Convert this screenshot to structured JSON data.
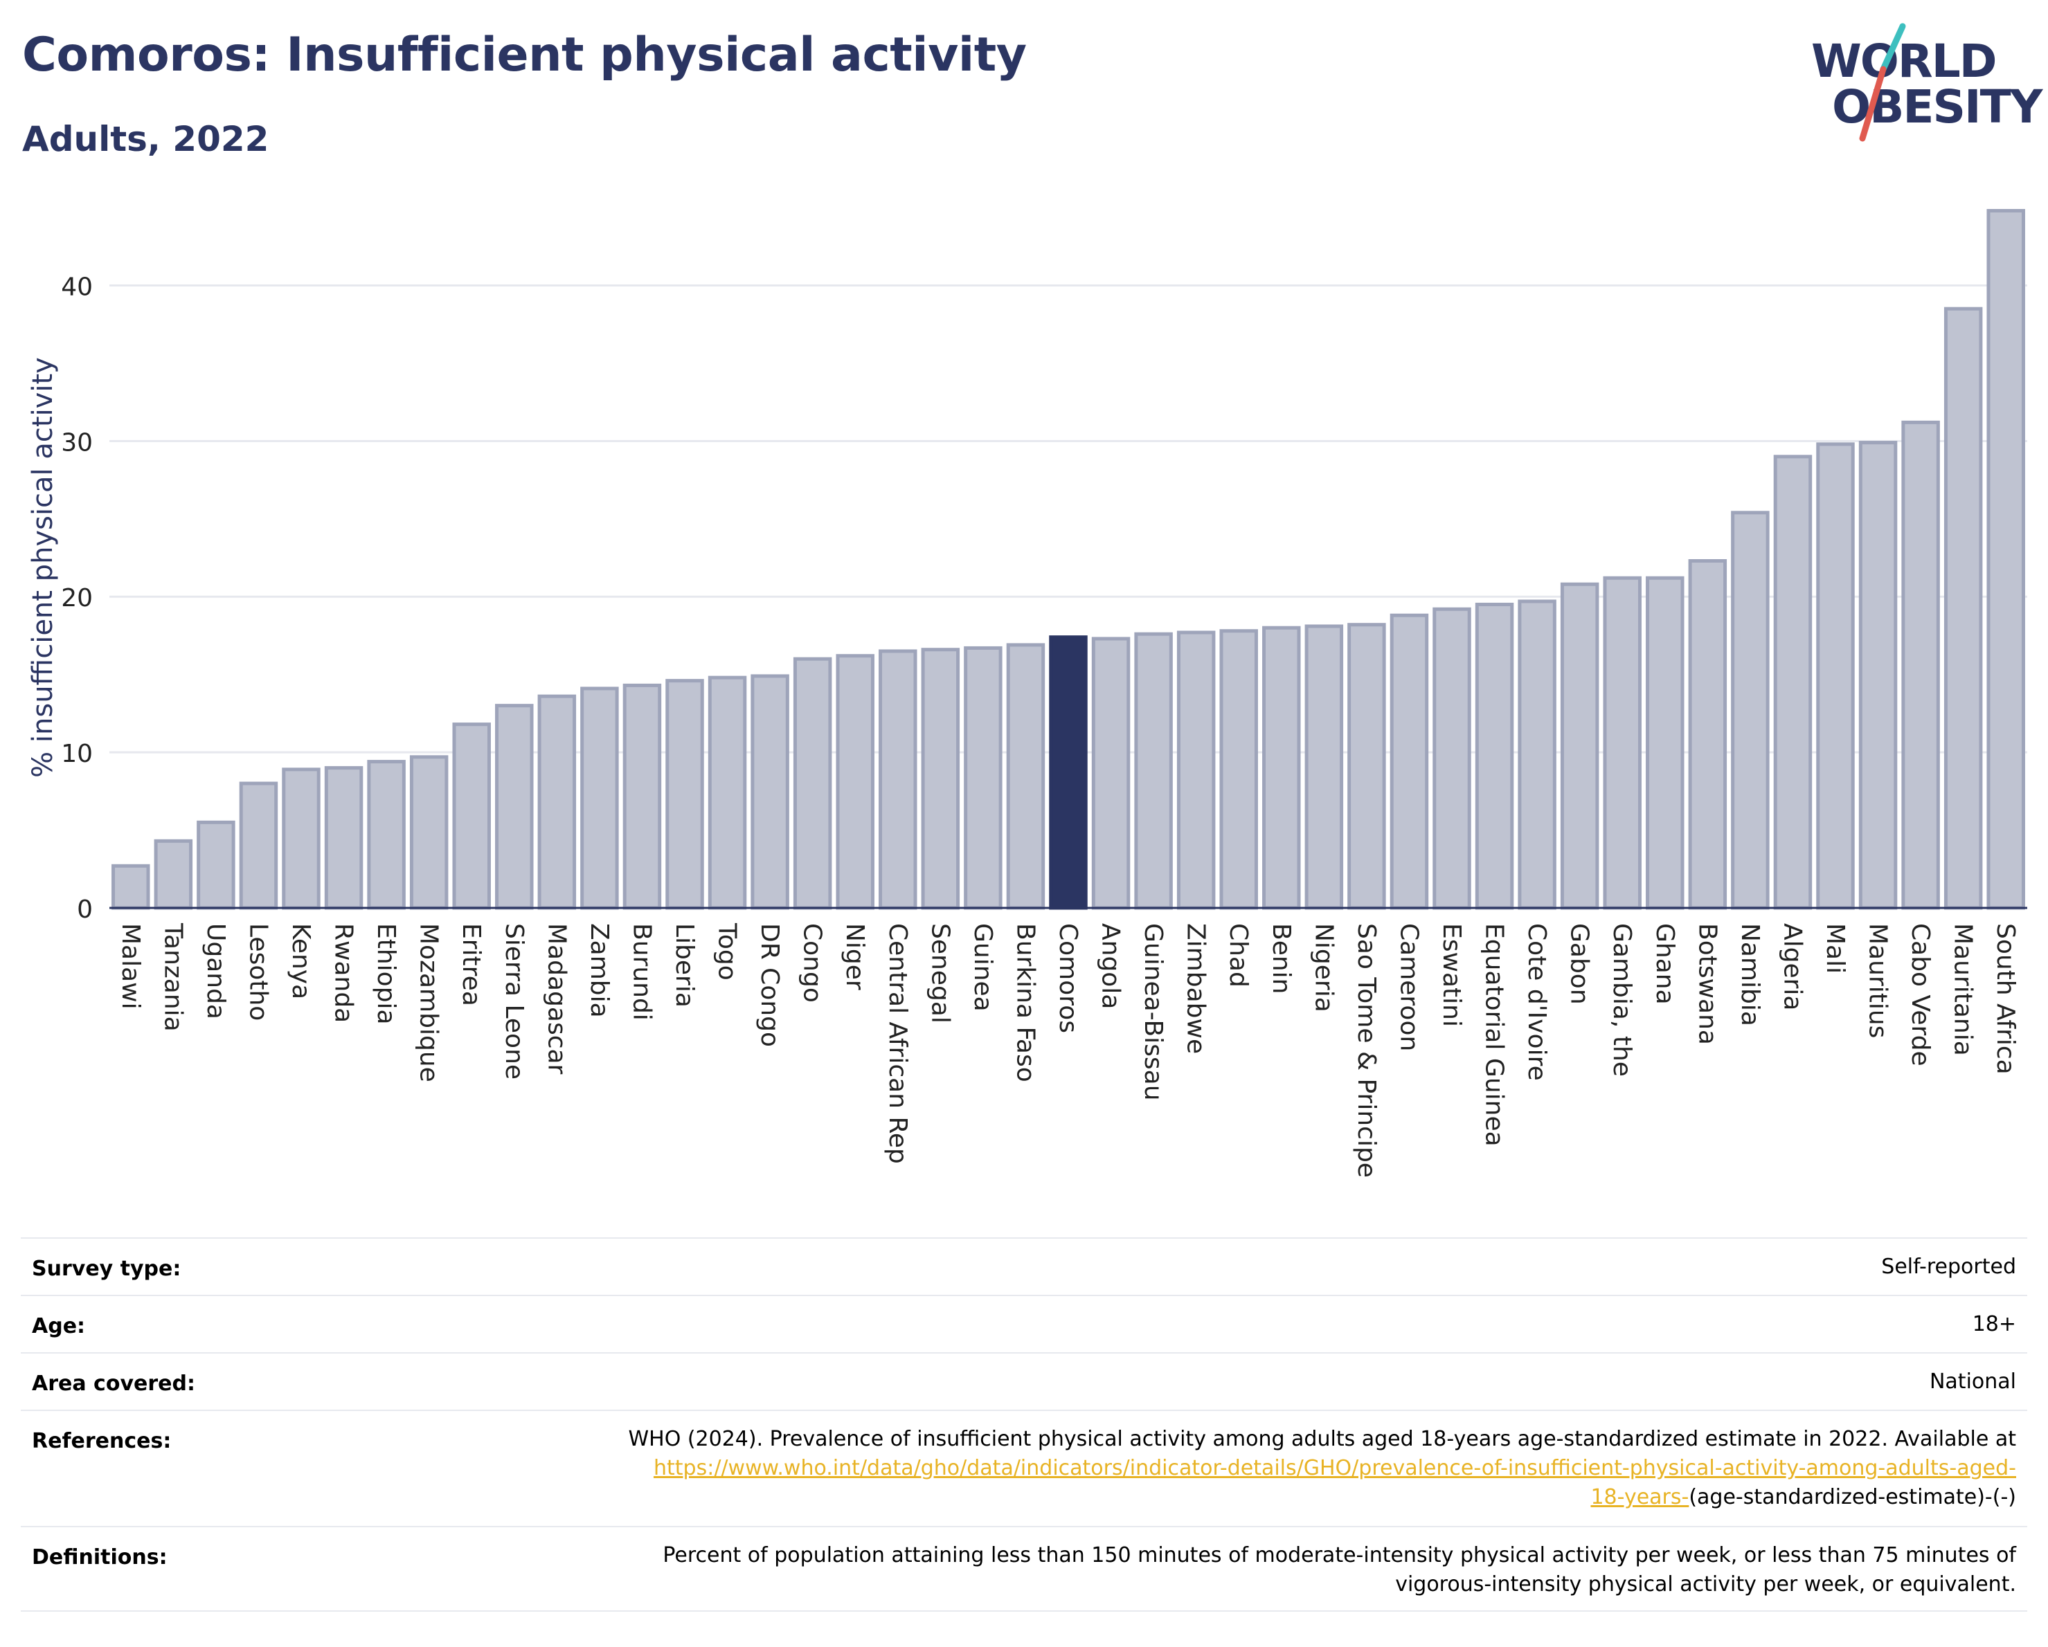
{
  "title": "Comoros: Insufficient physical activity",
  "subtitle": "Adults, 2022",
  "logo": {
    "line1": "WORLD",
    "line2": "OBESITY"
  },
  "colors": {
    "bar": "#bfc3d1",
    "bar_edge": "#9ea4ba",
    "highlight": "#2b3562",
    "text": "#2b3562",
    "grid": "#e6e8ee",
    "link": "#e8b325"
  },
  "chart_data": {
    "type": "bar",
    "ylabel": "% insufficient physical activity",
    "ylim": [
      0,
      45
    ],
    "yticks": [
      0,
      10,
      20,
      30,
      40
    ],
    "grid": true,
    "highlight": "Comoros",
    "categories": [
      "Malawi",
      "Tanzania",
      "Uganda",
      "Lesotho",
      "Kenya",
      "Rwanda",
      "Ethiopia",
      "Mozambique",
      "Eritrea",
      "Sierra Leone",
      "Madagascar",
      "Zambia",
      "Burundi",
      "Liberia",
      "Togo",
      "DR Congo",
      "Congo",
      "Niger",
      "Central African Rep",
      "Senegal",
      "Guinea",
      "Burkina Faso",
      "Comoros",
      "Angola",
      "Guinea-Bissau",
      "Zimbabwe",
      "Chad",
      "Benin",
      "Nigeria",
      "Sao Tome & Principe",
      "Cameroon",
      "Eswatini",
      "Equatorial Guinea",
      "Cote d'Ivoire",
      "Gabon",
      "Gambia, the",
      "Ghana",
      "Botswana",
      "Namibia",
      "Algeria",
      "Mali",
      "Mauritius",
      "Cabo Verde",
      "Mauritania",
      "South Africa"
    ],
    "values": [
      2.7,
      4.3,
      5.5,
      8.0,
      8.9,
      9.0,
      9.4,
      9.7,
      11.8,
      13.0,
      13.6,
      14.1,
      14.3,
      14.6,
      14.8,
      14.9,
      16.0,
      16.2,
      16.5,
      16.6,
      16.7,
      16.9,
      17.4,
      17.3,
      17.6,
      17.7,
      17.8,
      18.0,
      18.1,
      18.2,
      18.8,
      19.2,
      19.5,
      19.7,
      20.8,
      21.2,
      21.2,
      22.3,
      25.4,
      29.0,
      29.8,
      29.9,
      31.2,
      38.5,
      44.8
    ]
  },
  "meta": {
    "survey_type_label": "Survey type:",
    "survey_type_value": "Self-reported",
    "age_label": "Age:",
    "age_value": "18+",
    "area_label": "Area covered:",
    "area_value": "National",
    "references_label": "References:",
    "references_text": "WHO (2024). Prevalence of insufficient physical activity among adults aged 18-years age-standardized estimate in 2022. Available at",
    "references_link_1": "https://www.who.int/data/gho/data/indicators/indicator-details/GHO/prevalence-of-insufficient-physical-activity-among-adults-aged-",
    "references_link_2": "18-years-",
    "references_suffix": "(age-standardized-estimate)-(-)",
    "definitions_label": "Definitions:",
    "definitions_line_1": "Percent of population attaining less than 150 minutes of moderate-intensity physical activity per week, or less than 75 minutes of",
    "definitions_line_2": "vigorous-intensity physical activity per week, or equivalent."
  }
}
